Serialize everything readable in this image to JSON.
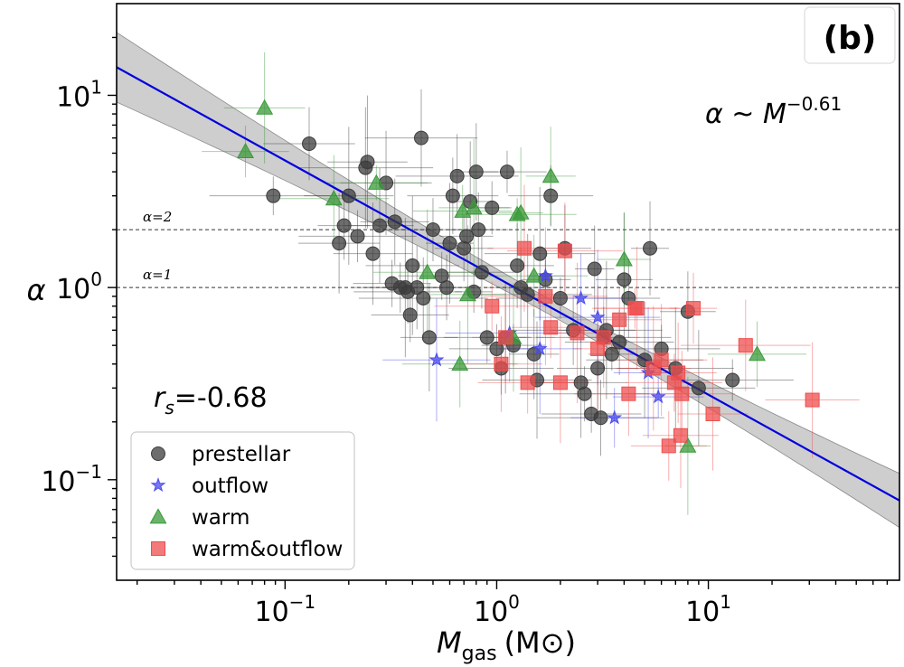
{
  "chart_data": {
    "type": "scatter",
    "panel_label": "(b)",
    "xlabel_main": "M",
    "xlabel_sub": "gas",
    "xlabel_unit": "(M⊙)",
    "ylabel": "α",
    "x_scale": "log",
    "y_scale": "log",
    "xlim": [
      0.016,
      80
    ],
    "ylim": [
      0.03,
      30
    ],
    "x_ticks": [
      {
        "value": 0.1,
        "base": "10",
        "exp": "−1"
      },
      {
        "value": 1,
        "base": "10",
        "exp": "0"
      },
      {
        "value": 10,
        "base": "10",
        "exp": "1"
      }
    ],
    "y_ticks": [
      {
        "value": 0.1,
        "base": "10",
        "exp": "−1"
      },
      {
        "value": 1,
        "base": "10",
        "exp": "0"
      },
      {
        "value": 10,
        "base": "10",
        "exp": "1"
      }
    ],
    "grid": false,
    "legend_position": "lower-left",
    "fit": {
      "label_prefix": "α ~ M",
      "label_exp": "−0.61",
      "slope": -0.61,
      "points": [
        [
          0.016,
          14.0
        ],
        [
          80,
          0.078
        ]
      ],
      "color": "#0000dd"
    },
    "correlation": {
      "symbol": "r",
      "sub": "s",
      "value_text": "=-0.68"
    },
    "reference_lines": [
      {
        "label": "α=2",
        "y": 2
      },
      {
        "label": "α=1",
        "y": 1
      }
    ],
    "series": [
      {
        "name": "prestellar",
        "marker": "circle",
        "color": "#3c3c3c",
        "points": [
          [
            0.088,
            3.0
          ],
          [
            0.13,
            5.6
          ],
          [
            0.18,
            1.7
          ],
          [
            0.19,
            2.1
          ],
          [
            0.2,
            3.0
          ],
          [
            0.22,
            1.85
          ],
          [
            0.24,
            4.2
          ],
          [
            0.245,
            4.5
          ],
          [
            0.26,
            1.5
          ],
          [
            0.28,
            2.1
          ],
          [
            0.3,
            3.5
          ],
          [
            0.32,
            1.05
          ],
          [
            0.33,
            2.2
          ],
          [
            0.35,
            1.0
          ],
          [
            0.37,
            1.0
          ],
          [
            0.38,
            0.95
          ],
          [
            0.39,
            0.72
          ],
          [
            0.4,
            1.3
          ],
          [
            0.42,
            1.0
          ],
          [
            0.44,
            6.0
          ],
          [
            0.45,
            0.88
          ],
          [
            0.48,
            0.55
          ],
          [
            0.5,
            2.0
          ],
          [
            0.55,
            1.15
          ],
          [
            0.58,
            1.0
          ],
          [
            0.6,
            1.7
          ],
          [
            0.62,
            3.0
          ],
          [
            0.65,
            3.8
          ],
          [
            0.7,
            1.6
          ],
          [
            0.72,
            1.85
          ],
          [
            0.75,
            2.8
          ],
          [
            0.78,
            0.95
          ],
          [
            0.8,
            4.0
          ],
          [
            0.82,
            2.0
          ],
          [
            0.85,
            1.2
          ],
          [
            0.9,
            0.55
          ],
          [
            0.95,
            2.6
          ],
          [
            1.0,
            0.48
          ],
          [
            1.05,
            0.38
          ],
          [
            1.1,
            0.55
          ],
          [
            1.12,
            4.0
          ],
          [
            1.2,
            0.5
          ],
          [
            1.25,
            1.3
          ],
          [
            1.3,
            1.0
          ],
          [
            1.4,
            0.92
          ],
          [
            1.5,
            0.45
          ],
          [
            1.55,
            0.33
          ],
          [
            1.6,
            1.5
          ],
          [
            1.7,
            1.1
          ],
          [
            1.8,
            3.0
          ],
          [
            2.0,
            0.88
          ],
          [
            2.1,
            1.6
          ],
          [
            2.3,
            0.6
          ],
          [
            2.5,
            0.32
          ],
          [
            2.6,
            0.28
          ],
          [
            2.8,
            0.22
          ],
          [
            2.9,
            1.25
          ],
          [
            3.0,
            0.38
          ],
          [
            3.1,
            0.21
          ],
          [
            3.2,
            0.55
          ],
          [
            3.3,
            0.6
          ],
          [
            3.5,
            0.45
          ],
          [
            3.8,
            0.52
          ],
          [
            4.0,
            1.1
          ],
          [
            4.2,
            0.88
          ],
          [
            5.0,
            0.42
          ],
          [
            5.3,
            1.6
          ],
          [
            6.0,
            0.48
          ],
          [
            7.0,
            0.38
          ],
          [
            8.0,
            0.75
          ],
          [
            9.0,
            0.3
          ],
          [
            13.0,
            0.33
          ]
        ]
      },
      {
        "name": "outflow",
        "marker": "star",
        "color": "#4a4aee",
        "points": [
          [
            0.52,
            0.42
          ],
          [
            1.15,
            0.58
          ],
          [
            1.6,
            0.48
          ],
          [
            1.7,
            1.15
          ],
          [
            2.5,
            0.88
          ],
          [
            3.0,
            0.7
          ],
          [
            3.6,
            0.21
          ],
          [
            5.2,
            0.36
          ],
          [
            5.8,
            0.27
          ]
        ]
      },
      {
        "name": "warm",
        "marker": "triangle",
        "color": "#3a9a3a",
        "points": [
          [
            0.065,
            5.1
          ],
          [
            0.08,
            8.6
          ],
          [
            0.17,
            2.9
          ],
          [
            0.27,
            3.5
          ],
          [
            0.47,
            1.2
          ],
          [
            0.67,
            0.4
          ],
          [
            0.69,
            2.5
          ],
          [
            0.73,
            0.92
          ],
          [
            0.78,
            2.6
          ],
          [
            1.2,
            0.55
          ],
          [
            1.25,
            2.4
          ],
          [
            1.3,
            2.45
          ],
          [
            1.5,
            1.15
          ],
          [
            1.8,
            3.8
          ],
          [
            4.0,
            1.4
          ],
          [
            8.0,
            0.15
          ],
          [
            17.0,
            0.45
          ]
        ]
      },
      {
        "name": "warm&outflow",
        "marker": "square",
        "color": "#ee4e4e",
        "points": [
          [
            0.95,
            0.8
          ],
          [
            1.05,
            0.4
          ],
          [
            1.1,
            0.55
          ],
          [
            1.35,
            1.6
          ],
          [
            1.4,
            0.32
          ],
          [
            1.7,
            0.9
          ],
          [
            1.8,
            0.62
          ],
          [
            2.0,
            0.32
          ],
          [
            2.1,
            1.55
          ],
          [
            2.4,
            0.58
          ],
          [
            3.0,
            0.48
          ],
          [
            3.2,
            0.55
          ],
          [
            3.8,
            0.68
          ],
          [
            4.2,
            0.28
          ],
          [
            4.5,
            0.78
          ],
          [
            4.6,
            0.78
          ],
          [
            5.5,
            0.38
          ],
          [
            6.0,
            0.42
          ],
          [
            6.5,
            0.15
          ],
          [
            6.9,
            0.32
          ],
          [
            7.2,
            0.36
          ],
          [
            7.4,
            0.17
          ],
          [
            7.5,
            0.28
          ],
          [
            8.5,
            0.78
          ],
          [
            10.5,
            0.22
          ],
          [
            15.0,
            0.5
          ],
          [
            31.0,
            0.26
          ]
        ]
      }
    ]
  }
}
